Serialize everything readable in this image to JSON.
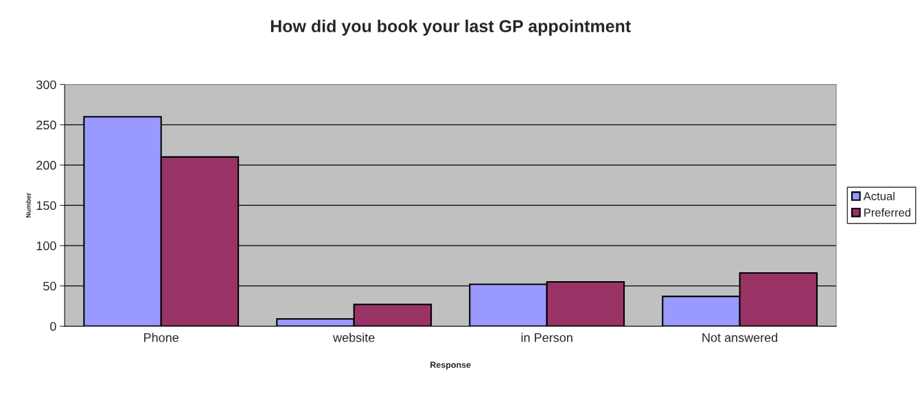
{
  "chart_data": {
    "type": "bar",
    "title": "How did you book your last GP appointment",
    "xlabel": "Response",
    "ylabel": "Number",
    "categories": [
      "Phone",
      "website",
      "in Person",
      "Not answered"
    ],
    "series": [
      {
        "name": "Actual",
        "color": "#9999ff",
        "values": [
          260,
          9,
          52,
          37
        ]
      },
      {
        "name": "Preferred",
        "color": "#993366",
        "values": [
          210,
          27,
          55,
          66
        ]
      }
    ],
    "ylim": [
      0,
      300
    ],
    "yticks": [
      0,
      50,
      100,
      150,
      200,
      250,
      300
    ],
    "grid": "y",
    "legend": "right"
  }
}
